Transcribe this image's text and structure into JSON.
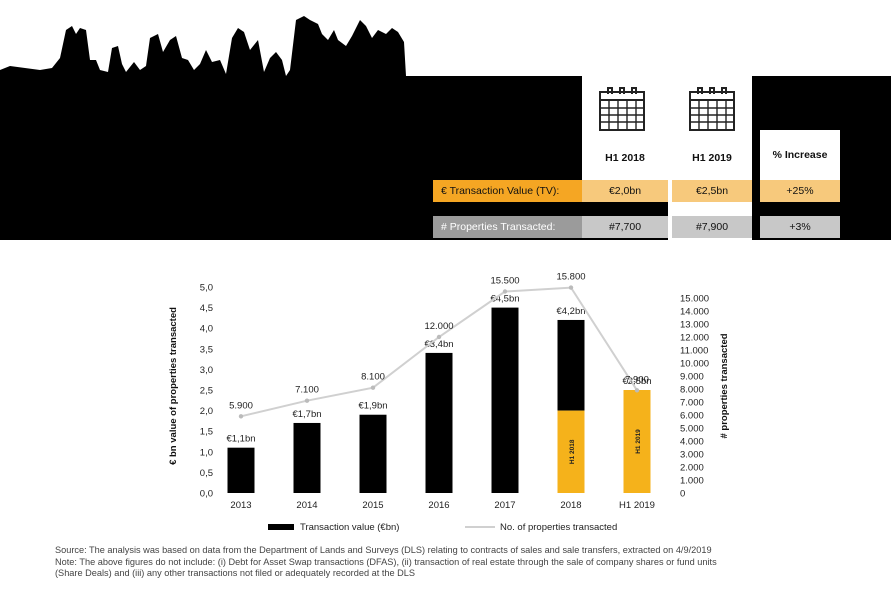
{
  "header": {
    "col_h1_2018": "H1 2018",
    "col_h1_2019": "H1 2019",
    "col_increase": "% Increase",
    "rows": [
      {
        "label": "€ Transaction Value (TV):",
        "h1_2018": "€2,0bn",
        "h1_2019": "€2,5bn",
        "increase": "+25%"
      },
      {
        "label": "# Properties Transacted:",
        "h1_2018": "#7,700",
        "h1_2019": "#7,900",
        "increase": "+3%"
      }
    ],
    "icons": [
      "calendar-icon",
      "calendar-icon"
    ]
  },
  "colors": {
    "bar_full_year": "#000000",
    "bar_half_year": "#f5b21b",
    "line": "#d0d0d0",
    "orange_row": "#f5a623",
    "grey_row": "#9b9b9b"
  },
  "chart_data": {
    "type": "bar",
    "categories": [
      "2013",
      "2014",
      "2015",
      "2016",
      "2017",
      "2018",
      "H1 2019"
    ],
    "series": [
      {
        "name": "Transaction value (€bn)",
        "values": [
          1.1,
          1.7,
          1.9,
          3.4,
          4.5,
          4.2,
          2.5
        ],
        "data_labels": [
          "€1,1bn",
          "€1,7bn",
          "€1,9bn",
          "€3,4bn",
          "€4,5bn",
          "€4,2bn",
          "€2,5bn"
        ]
      },
      {
        "name": "No. of properties transacted",
        "type": "line",
        "axis": "right",
        "values": [
          5900,
          7100,
          8100,
          12000,
          15500,
          15800,
          7900
        ],
        "data_labels": [
          "5.900",
          "7.100",
          "8.100",
          "12.000",
          "15.500",
          "15.800",
          "7.900"
        ]
      }
    ],
    "half_year_segments": [
      {
        "category": "2018",
        "value": 2.0,
        "label": "H1 2018"
      },
      {
        "category": "H1 2019",
        "value": 2.5,
        "label": "H1 2019"
      }
    ],
    "ylabel": "€ bn value of properties transacted",
    "y2label": "# properties transacted",
    "ylim": [
      0,
      5
    ],
    "yticks": [
      "0,0",
      "0,5",
      "1,0",
      "1,5",
      "2,0",
      "2,5",
      "3,0",
      "3,5",
      "4,0",
      "4,5",
      "5,0"
    ],
    "y2lim": [
      0,
      15000
    ],
    "y2ticks": [
      "0",
      "1.000",
      "2.000",
      "3.000",
      "4.000",
      "5.000",
      "6.000",
      "7.000",
      "8.000",
      "9.000",
      "10.000",
      "11.000",
      "12.000",
      "13.000",
      "14.000",
      "15.000"
    ],
    "legend": "bottom-center",
    "grid": false
  },
  "footer": {
    "line1": "Source: The analysis was based on data from the Department of Lands and Surveys (DLS) relating to contracts of sales and sale transfers, extracted on 4/9/2019",
    "line2": "Note: The above figures do not include: (i) Debt for Asset Swap transactions (DFAS), (ii) transaction of real estate through the sale of company shares or fund units",
    "line3": "(Share Deals) and (iii) any other transactions not filed or adequately recorded at the DLS"
  }
}
